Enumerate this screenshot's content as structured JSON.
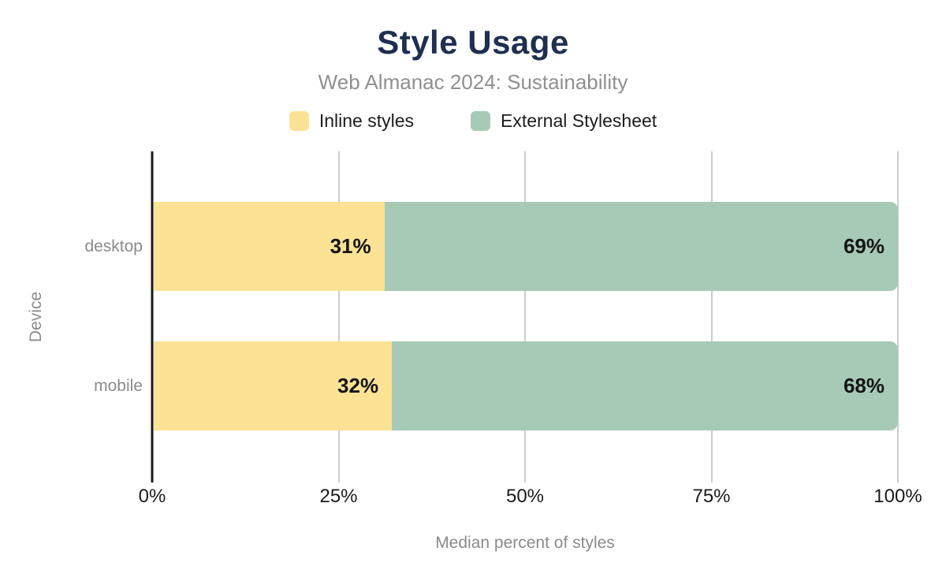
{
  "chart_data": {
    "type": "bar",
    "variant": "horizontal-stacked",
    "title": "Style Usage",
    "subtitle": "Web Almanac 2024: Sustainability",
    "categories": [
      "desktop",
      "mobile"
    ],
    "series": [
      {
        "name": "Inline styles",
        "color": "#fbe295",
        "values": [
          31,
          32
        ]
      },
      {
        "name": "External Stylesheet",
        "color": "#a7cab6",
        "values": [
          69,
          68
        ]
      }
    ],
    "value_suffix": "%",
    "value_labels": [
      [
        "31%",
        "69%"
      ],
      [
        "32%",
        "68%"
      ]
    ],
    "xlabel": "Median percent of styles",
    "ylabel": "Device",
    "xlim": [
      0,
      100
    ],
    "x_ticks": [
      {
        "value": 0,
        "label": "0%"
      },
      {
        "value": 25,
        "label": "25%"
      },
      {
        "value": 50,
        "label": "50%"
      },
      {
        "value": 75,
        "label": "75%"
      },
      {
        "value": 100,
        "label": "100%"
      }
    ],
    "grid": "vertical-on",
    "legend_position": "top-center",
    "colors": {
      "title": "#1e2f4f",
      "subtitle": "#909090",
      "axis_labels": "#8b8b8b",
      "tick_labels": "#1a1a1a",
      "bar_value_labels": "#141414",
      "gridline": "#cccccc",
      "axis_line": "#1a1a1a",
      "background": "#ffffff"
    }
  }
}
